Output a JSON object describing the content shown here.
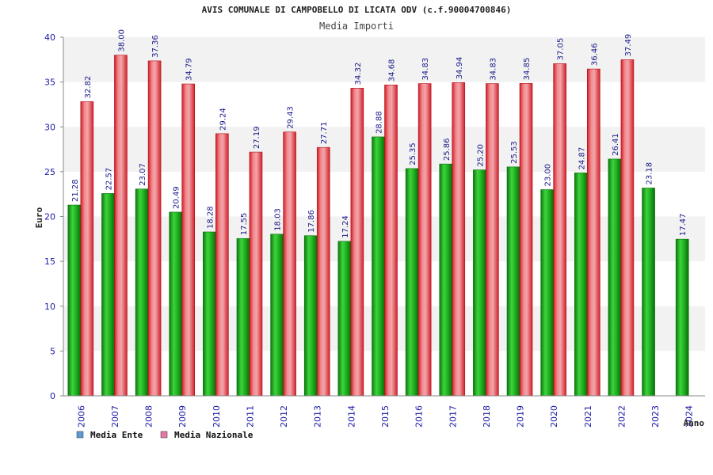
{
  "chart_data": {
    "type": "bar",
    "title": "AVIS COMUNALE DI CAMPOBELLO DI LICATA ODV (c.f.90004700846)",
    "subtitle": "Media Importi",
    "xlabel": "Anno",
    "ylabel": "Euro",
    "ylim": [
      0,
      40
    ],
    "yticks": [
      "0",
      "5",
      "10",
      "15",
      "20",
      "25",
      "30",
      "35",
      "40"
    ],
    "grid": "horizontal alternating bands",
    "legend_position": "bottom-left",
    "categories": [
      "2006",
      "2007",
      "2008",
      "2009",
      "2010",
      "2011",
      "2012",
      "2013",
      "2014",
      "2015",
      "2016",
      "2017",
      "2018",
      "2019",
      "2020",
      "2021",
      "2022",
      "2023",
      "2024"
    ],
    "series": [
      {
        "name": "Media Ente",
        "values": [
          21.28,
          22.57,
          23.07,
          20.49,
          18.28,
          17.55,
          18.03,
          17.86,
          17.24,
          28.88,
          25.35,
          25.86,
          25.2,
          25.53,
          23.0,
          24.87,
          26.41,
          23.18,
          17.47
        ],
        "labels": [
          "21.28",
          "22.57",
          "23.07",
          "20.49",
          "18.28",
          "17.55",
          "18.03",
          "17.86",
          "17.24",
          "28.88",
          "25.35",
          "25.86",
          "25.20",
          "25.53",
          "23.00",
          "24.87",
          "26.41",
          "23.18",
          "17.47"
        ]
      },
      {
        "name": "Media Nazionale",
        "values": [
          32.82,
          38.0,
          37.36,
          34.79,
          29.24,
          27.19,
          29.43,
          27.71,
          34.32,
          34.68,
          34.83,
          34.94,
          34.83,
          34.85,
          37.05,
          36.46,
          37.49,
          null,
          null
        ],
        "labels": [
          "32.82",
          "38.00",
          "37.36",
          "34.79",
          "29.24",
          "27.19",
          "29.43",
          "27.71",
          "34.32",
          "34.68",
          "34.83",
          "34.94",
          "34.83",
          "34.85",
          "37.05",
          "36.46",
          "37.49",
          "",
          ""
        ]
      }
    ],
    "colors": {
      "ente": "#1fb01f",
      "nazionale": "#e8323c",
      "legend_ente": "#5b9bd5",
      "legend_nazionale": "#e377a6",
      "band": "#f2f2f2",
      "tick_text": "#1a1aa6"
    }
  }
}
